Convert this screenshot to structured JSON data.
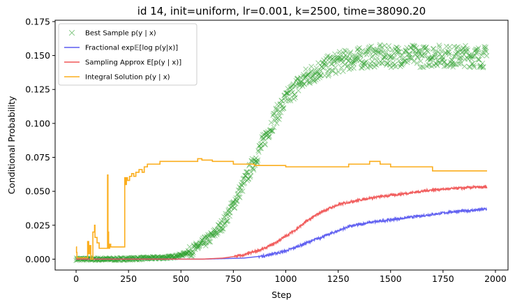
{
  "chart_data": {
    "type": "line",
    "title": "id 14, init=uniform, lr=0.001, k=2500, time=38090.20",
    "xlabel": "Step",
    "ylabel": "Conditional Probability",
    "xlim": [
      -100,
      2060
    ],
    "ylim": [
      -0.008,
      0.176
    ],
    "x_ticks": [
      0,
      250,
      500,
      750,
      1000,
      1250,
      1500,
      1750,
      2000
    ],
    "x_tick_labels": [
      "0",
      "250",
      "500",
      "750",
      "1000",
      "1250",
      "1500",
      "1750",
      "2000"
    ],
    "y_ticks": [
      0.0,
      0.025,
      0.05,
      0.075,
      0.1,
      0.125,
      0.15,
      0.175
    ],
    "y_tick_labels": [
      "0.000",
      "0.025",
      "0.050",
      "0.075",
      "0.100",
      "0.125",
      "0.150",
      "0.175"
    ],
    "grid": false,
    "legend_position": "top-left",
    "series": [
      {
        "name": "Best Sample p(y | x)",
        "style": "markers",
        "marker": "x",
        "color": "#2ca02c",
        "x": [
          0,
          100,
          200,
          300,
          400,
          450,
          500,
          550,
          600,
          650,
          700,
          750,
          800,
          850,
          900,
          950,
          1000,
          1050,
          1100,
          1150,
          1200,
          1250,
          1300,
          1350,
          1400,
          1450,
          1500,
          1550,
          1600,
          1650,
          1700,
          1750,
          1800,
          1850,
          1900,
          1960
        ],
        "values": [
          0.0,
          0.0,
          0.0,
          0.0005,
          0.001,
          0.0015,
          0.003,
          0.006,
          0.011,
          0.017,
          0.026,
          0.04,
          0.056,
          0.072,
          0.089,
          0.105,
          0.117,
          0.127,
          0.134,
          0.139,
          0.142,
          0.145,
          0.147,
          0.148,
          0.149,
          0.15,
          0.149,
          0.15,
          0.15,
          0.149,
          0.15,
          0.15,
          0.149,
          0.15,
          0.149,
          0.149
        ]
      },
      {
        "name": "Fractional exp𝔼[log p(y|x)]",
        "style": "line",
        "color": "#5b5bf0",
        "x": [
          0,
          300,
          600,
          800,
          900,
          1000,
          1050,
          1100,
          1150,
          1200,
          1250,
          1300,
          1400,
          1500,
          1600,
          1700,
          1800,
          1900,
          1960
        ],
        "values": [
          0.0,
          0.0,
          0.0,
          0.0008,
          0.0025,
          0.006,
          0.009,
          0.012,
          0.015,
          0.018,
          0.021,
          0.024,
          0.027,
          0.029,
          0.031,
          0.033,
          0.035,
          0.036,
          0.037
        ]
      },
      {
        "name": "Sampling Approx E[p(y | x)]",
        "style": "line",
        "color": "#f05656",
        "x": [
          0,
          300,
          600,
          700,
          800,
          900,
          950,
          1000,
          1050,
          1100,
          1150,
          1200,
          1250,
          1300,
          1400,
          1500,
          1600,
          1700,
          1800,
          1900,
          1960
        ],
        "values": [
          0.0,
          0.0,
          0.0,
          0.0008,
          0.003,
          0.008,
          0.012,
          0.017,
          0.022,
          0.028,
          0.033,
          0.037,
          0.04,
          0.042,
          0.045,
          0.047,
          0.049,
          0.051,
          0.052,
          0.053,
          0.053
        ]
      },
      {
        "name": "Integral Solution p(y | x)",
        "style": "step",
        "color": "#fbad1c",
        "x": [
          0,
          2,
          4,
          50,
          55,
          60,
          65,
          70,
          80,
          88,
          90,
          100,
          110,
          120,
          150,
          152,
          155,
          160,
          165,
          230,
          232,
          235,
          240,
          245,
          255,
          265,
          275,
          285,
          300,
          315,
          325,
          340,
          360,
          400,
          500,
          580,
          600,
          650,
          750,
          850,
          900,
          950,
          1000,
          1100,
          1300,
          1400,
          1450,
          1500,
          1550,
          1700,
          1720,
          1960
        ],
        "values": [
          0.009,
          0.005,
          0.001,
          0.001,
          0.013,
          0.004,
          0.01,
          0.0,
          0.02,
          0.025,
          0.016,
          0.012,
          0.008,
          0.008,
          0.062,
          0.02,
          0.008,
          0.011,
          0.009,
          0.009,
          0.06,
          0.055,
          0.06,
          0.058,
          0.061,
          0.063,
          0.061,
          0.064,
          0.066,
          0.064,
          0.068,
          0.07,
          0.07,
          0.072,
          0.072,
          0.074,
          0.073,
          0.072,
          0.07,
          0.069,
          0.069,
          0.069,
          0.068,
          0.068,
          0.07,
          0.072,
          0.07,
          0.068,
          0.068,
          0.065,
          0.065,
          0.065
        ]
      }
    ]
  }
}
